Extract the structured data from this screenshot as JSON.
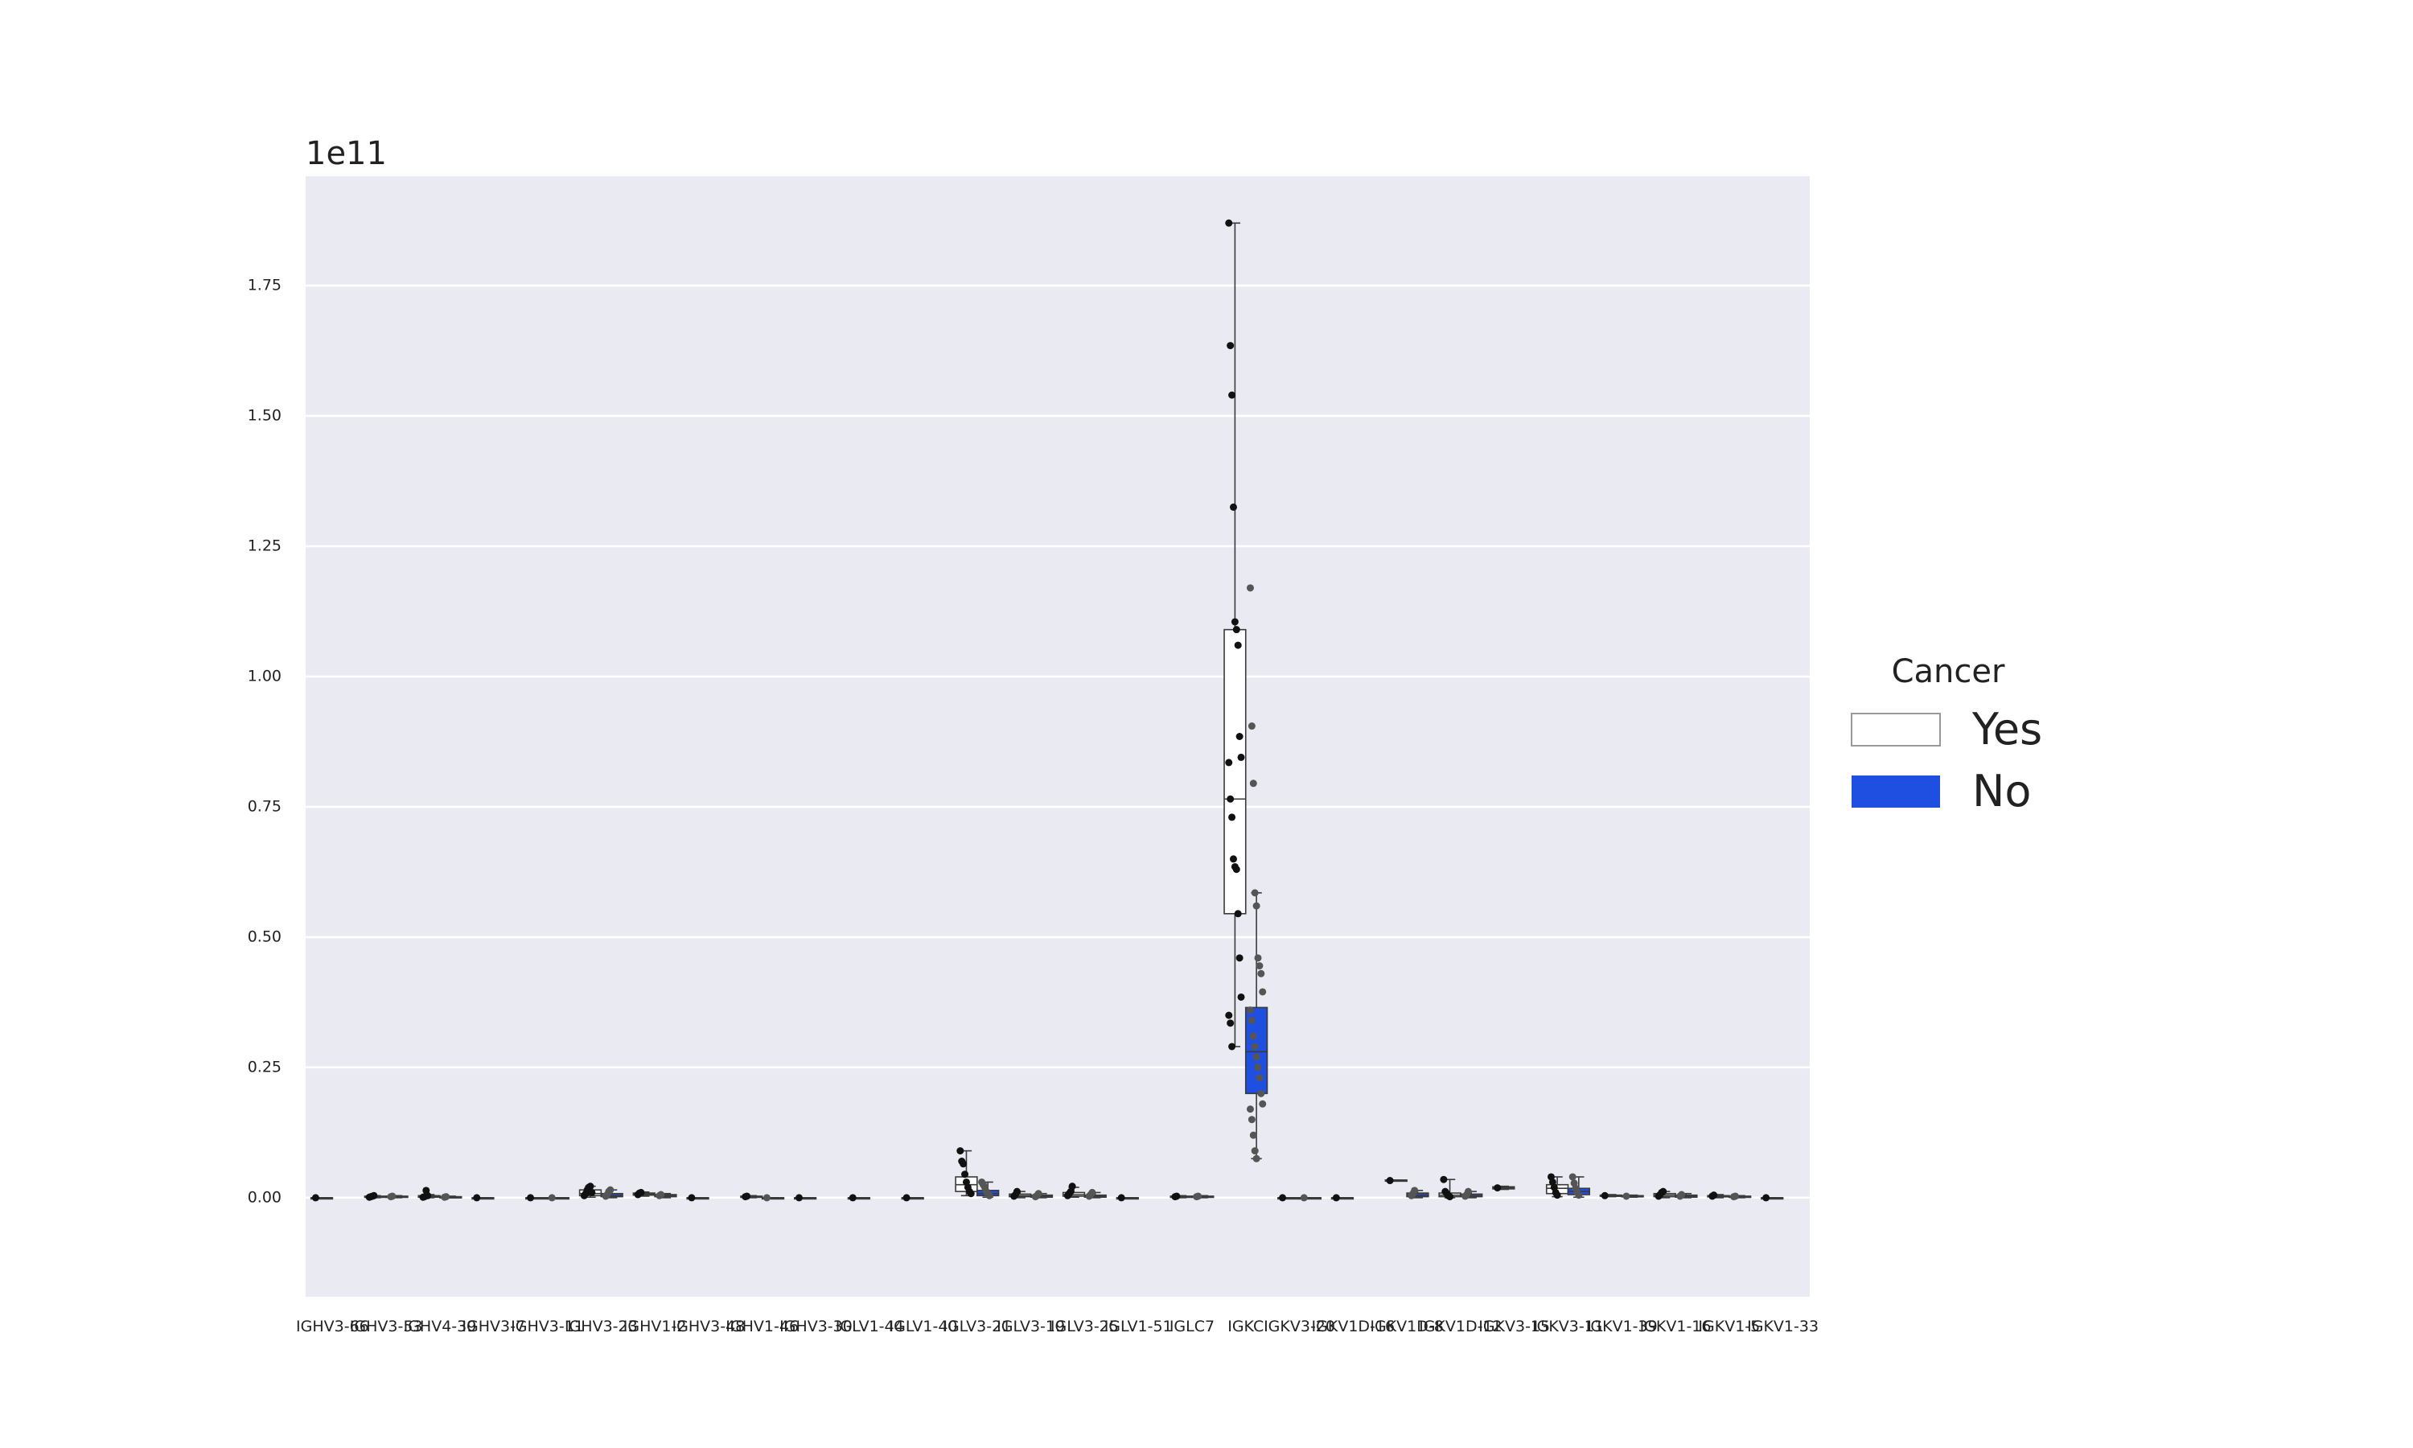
{
  "chart_data": {
    "type": "box",
    "title": "",
    "xlabel": "",
    "ylabel": "",
    "y_offset_label": "1e11",
    "ylim": [
      -0.19,
      1.96
    ],
    "yticks": [
      0.0,
      0.25,
      0.5,
      0.75,
      1.0,
      1.25,
      1.5,
      1.75
    ],
    "ytick_labels": [
      "0.00",
      "0.25",
      "0.50",
      "0.75",
      "1.00",
      "1.25",
      "1.50",
      "1.75"
    ],
    "grid": true,
    "legend": {
      "title": "Cancer",
      "placement": "right",
      "entries": [
        {
          "label": "Yes",
          "color": "#ffffff"
        },
        {
          "label": "No",
          "color": "#1f4fe0"
        }
      ]
    },
    "categories": [
      "IGHV3-66",
      "IGHV3-53",
      "IGHV4-39",
      "IGHV3-7",
      "IGHV3-11",
      "IGHV3-23",
      "IGHV1-2",
      "IGHV3-48",
      "IGHV1-46",
      "IGHV3-30",
      "IGLV1-44",
      "IGLV1-40",
      "IGLV3-21",
      "IGLV3-19",
      "IGLV3-25",
      "IGLV1-51",
      "IGLC7",
      "IGKC",
      "IGKV3-20",
      "IGKV1D-16",
      "IGKV1D-8",
      "IGKV1D-12",
      "IGKV3-15",
      "IGKV3-11",
      "IGKV1-39",
      "IGKV1-16",
      "IGKV1-5",
      "IGKV1-33"
    ],
    "series": [
      {
        "name": "Yes",
        "color": "#ffffff",
        "boxes": [
          {
            "q1": 0,
            "median": 0,
            "q3": 0,
            "lo": 0,
            "hi": 0,
            "points": [
              0
            ]
          },
          {
            "q1": 0.001,
            "median": 0.002,
            "q3": 0.003,
            "lo": 0,
            "hi": 0.004,
            "points": [
              0.001,
              0.002,
              0.003,
              0.004
            ]
          },
          {
            "q1": 0.001,
            "median": 0.002,
            "q3": 0.004,
            "lo": 0,
            "hi": 0.006,
            "points": [
              0.001,
              0.002,
              0.014,
              0.004
            ]
          },
          {
            "q1": 0,
            "median": 0,
            "q3": 0,
            "lo": 0,
            "hi": 0,
            "points": [
              0
            ]
          },
          {
            "q1": 0,
            "median": 0,
            "q3": 0,
            "lo": 0,
            "hi": 0,
            "points": [
              0
            ]
          },
          {
            "q1": 0.004,
            "median": 0.008,
            "q3": 0.015,
            "lo": 0.001,
            "hi": 0.022,
            "points": [
              0.004,
              0.008,
              0.015,
              0.02,
              0.022,
              0.01
            ]
          },
          {
            "q1": 0.005,
            "median": 0.007,
            "q3": 0.009,
            "lo": 0.003,
            "hi": 0.011,
            "points": [
              0.006,
              0.009,
              0.01
            ]
          },
          {
            "q1": 0,
            "median": 0,
            "q3": 0,
            "lo": 0,
            "hi": 0,
            "points": [
              0
            ]
          },
          {
            "q1": 0.001,
            "median": 0.002,
            "q3": 0.003,
            "lo": 0,
            "hi": 0.004,
            "points": [
              0.002,
              0.003
            ]
          },
          {
            "q1": 0,
            "median": 0,
            "q3": 0,
            "lo": 0,
            "hi": 0,
            "points": [
              0
            ]
          },
          {
            "q1": 0,
            "median": 0,
            "q3": 0,
            "lo": 0,
            "hi": 0,
            "points": [
              0
            ]
          },
          {
            "q1": 0,
            "median": 0,
            "q3": 0,
            "lo": 0,
            "hi": 0,
            "points": [
              0
            ]
          },
          {
            "q1": 0.012,
            "median": 0.025,
            "q3": 0.04,
            "lo": 0.004,
            "hi": 0.09,
            "points": [
              0.09,
              0.07,
              0.065,
              0.045,
              0.03,
              0.02,
              0.012,
              0.008
            ]
          },
          {
            "q1": 0.002,
            "median": 0.004,
            "q3": 0.007,
            "lo": 0,
            "hi": 0.012,
            "points": [
              0.003,
              0.006,
              0.012
            ]
          },
          {
            "q1": 0.003,
            "median": 0.006,
            "q3": 0.01,
            "lo": 0.001,
            "hi": 0.02,
            "points": [
              0.004,
              0.008,
              0.012,
              0.022
            ]
          },
          {
            "q1": 0,
            "median": 0,
            "q3": 0,
            "lo": 0,
            "hi": 0,
            "points": [
              0
            ]
          },
          {
            "q1": 0.001,
            "median": 0.002,
            "q3": 0.003,
            "lo": 0,
            "hi": 0.004,
            "points": [
              0.002,
              0.003
            ]
          },
          {
            "q1": 0.545,
            "median": 0.765,
            "q3": 1.09,
            "lo": 0.29,
            "hi": 1.87,
            "points": [
              1.87,
              1.635,
              1.54,
              1.325,
              1.105,
              1.09,
              1.06,
              0.885,
              0.845,
              0.835,
              0.765,
              0.73,
              0.65,
              0.635,
              0.63,
              0.545,
              0.46,
              0.385,
              0.35,
              0.335,
              0.29
            ]
          },
          {
            "q1": 0,
            "median": 0,
            "q3": 0,
            "lo": 0,
            "hi": 0,
            "points": [
              0
            ]
          },
          {
            "q1": 0,
            "median": 0,
            "q3": 0,
            "lo": 0,
            "hi": 0,
            "points": [
              0
            ]
          },
          {
            "q1": 0.032,
            "median": 0.033,
            "q3": 0.034,
            "lo": 0.032,
            "hi": 0.034,
            "points": [
              0.033
            ]
          },
          {
            "q1": 0.002,
            "median": 0.005,
            "q3": 0.009,
            "lo": 0,
            "hi": 0.035,
            "points": [
              0.035,
              0.012,
              0.008,
              0.004,
              0.002
            ]
          },
          {
            "q1": 0.017,
            "median": 0.019,
            "q3": 0.021,
            "lo": 0.016,
            "hi": 0.022,
            "points": [
              0.019
            ]
          },
          {
            "q1": 0.008,
            "median": 0.018,
            "q3": 0.025,
            "lo": 0.002,
            "hi": 0.04,
            "points": [
              0.04,
              0.03,
              0.02,
              0.01,
              0.005
            ]
          },
          {
            "q1": 0.003,
            "median": 0.004,
            "q3": 0.005,
            "lo": 0.002,
            "hi": 0.006,
            "points": [
              0.004
            ]
          },
          {
            "q1": 0.002,
            "median": 0.005,
            "q3": 0.008,
            "lo": 0,
            "hi": 0.012,
            "points": [
              0.003,
              0.006,
              0.01,
              0.012
            ]
          },
          {
            "q1": 0.002,
            "median": 0.003,
            "q3": 0.004,
            "lo": 0,
            "hi": 0.006,
            "points": [
              0.003,
              0.005
            ]
          },
          {
            "q1": 0,
            "median": 0,
            "q3": 0,
            "lo": 0,
            "hi": 0,
            "points": [
              0
            ]
          }
        ]
      },
      {
        "name": "No",
        "color": "#1f4fe0",
        "boxes": [
          null,
          {
            "q1": 0.001,
            "median": 0.002,
            "q3": 0.003,
            "lo": 0,
            "hi": 0.004,
            "points": [
              0.002,
              0.003
            ]
          },
          {
            "q1": 0.001,
            "median": 0.001,
            "q3": 0.002,
            "lo": 0,
            "hi": 0.003,
            "points": [
              0.001,
              0.002
            ]
          },
          null,
          {
            "q1": 0,
            "median": 0,
            "q3": 0,
            "lo": 0,
            "hi": 0,
            "points": [
              0
            ]
          },
          {
            "q1": 0.002,
            "median": 0.004,
            "q3": 0.008,
            "lo": 0,
            "hi": 0.015,
            "points": [
              0.003,
              0.006,
              0.012,
              0.015
            ]
          },
          {
            "q1": 0.002,
            "median": 0.004,
            "q3": 0.006,
            "lo": 0,
            "hi": 0.008,
            "points": [
              0.004,
              0.006
            ]
          },
          null,
          {
            "q1": 0,
            "median": 0,
            "q3": 0,
            "lo": 0,
            "hi": 0,
            "points": [
              0
            ]
          },
          null,
          null,
          null,
          {
            "q1": 0.004,
            "median": 0.008,
            "q3": 0.014,
            "lo": 0.001,
            "hi": 0.03,
            "points": [
              0.03,
              0.025,
              0.02,
              0.012,
              0.008,
              0.004
            ]
          },
          {
            "q1": 0.001,
            "median": 0.003,
            "q3": 0.005,
            "lo": 0,
            "hi": 0.008,
            "points": [
              0.002,
              0.004,
              0.008
            ]
          },
          {
            "q1": 0.001,
            "median": 0.003,
            "q3": 0.005,
            "lo": 0,
            "hi": 0.01,
            "points": [
              0.003,
              0.006,
              0.01
            ]
          },
          null,
          {
            "q1": 0.001,
            "median": 0.002,
            "q3": 0.003,
            "lo": 0,
            "hi": 0.004,
            "points": [
              0.002,
              0.003
            ]
          },
          {
            "q1": 0.2,
            "median": 0.28,
            "q3": 0.365,
            "lo": 0.075,
            "hi": 0.585,
            "points": [
              1.17,
              0.905,
              0.795,
              0.585,
              0.56,
              0.46,
              0.445,
              0.43,
              0.395,
              0.36,
              0.34,
              0.31,
              0.29,
              0.27,
              0.25,
              0.23,
              0.2,
              0.18,
              0.17,
              0.15,
              0.12,
              0.09,
              0.075
            ]
          },
          {
            "q1": 0,
            "median": 0,
            "q3": 0,
            "lo": 0,
            "hi": 0,
            "points": [
              0
            ]
          },
          null,
          {
            "q1": 0.002,
            "median": 0.005,
            "q3": 0.009,
            "lo": 0,
            "hi": 0.014,
            "points": [
              0.004,
              0.008,
              0.014
            ]
          },
          {
            "q1": 0.002,
            "median": 0.004,
            "q3": 0.007,
            "lo": 0,
            "hi": 0.012,
            "points": [
              0.003,
              0.006,
              0.012
            ]
          },
          null,
          {
            "q1": 0.006,
            "median": 0.012,
            "q3": 0.018,
            "lo": 0.001,
            "hi": 0.04,
            "points": [
              0.04,
              0.028,
              0.018,
              0.01,
              0.005
            ]
          },
          {
            "q1": 0.002,
            "median": 0.003,
            "q3": 0.004,
            "lo": 0.001,
            "hi": 0.005,
            "points": [
              0.003
            ]
          },
          {
            "q1": 0.001,
            "median": 0.003,
            "q3": 0.005,
            "lo": 0,
            "hi": 0.008,
            "points": [
              0.003,
              0.006
            ]
          },
          {
            "q1": 0.001,
            "median": 0.002,
            "q3": 0.003,
            "lo": 0,
            "hi": 0.004,
            "points": [
              0.002,
              0.003
            ]
          },
          null
        ]
      }
    ]
  }
}
